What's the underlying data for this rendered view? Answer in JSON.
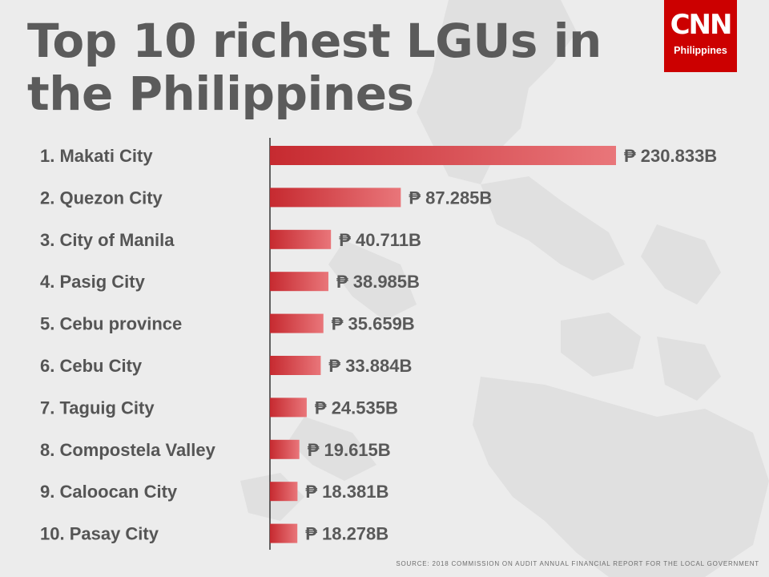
{
  "header": {
    "title_line1": "Top 10 richest LGUs in",
    "title_line2": "the Philippines"
  },
  "logo": {
    "mark": "CNN",
    "subtitle": "Philippines",
    "background": "#cc0000"
  },
  "chart_data": {
    "type": "bar",
    "orientation": "horizontal",
    "categories": [
      "1. Makati City",
      "2. Quezon City",
      "3. City of Manila",
      "4. Pasig City",
      "5. Cebu province",
      "6. Cebu City",
      "7. Taguig City",
      "8. Compostela Valley",
      "9. Caloocan City",
      "10. Pasay City"
    ],
    "values": [
      230.833,
      87.285,
      40.711,
      38.985,
      35.659,
      33.884,
      24.535,
      19.615,
      18.381,
      18.278
    ],
    "value_labels": [
      "₱ 230.833B",
      "₱ 87.285B",
      "₱ 40.711B",
      "₱ 38.985B",
      "₱ 35.659B",
      "₱ 33.884B",
      "₱ 24.535B",
      "₱ 19.615B",
      "₱ 18.381B",
      "₱ 18.278B"
    ],
    "bar_color_start": "#c62a30",
    "bar_color_end": "#e9767a",
    "grid": false,
    "legend": "none"
  },
  "footer": {
    "source": "SOURCE: 2018 COMMISSION ON AUDIT ANNUAL FINANCIAL REPORT FOR THE LOCAL GOVERNMENT"
  }
}
